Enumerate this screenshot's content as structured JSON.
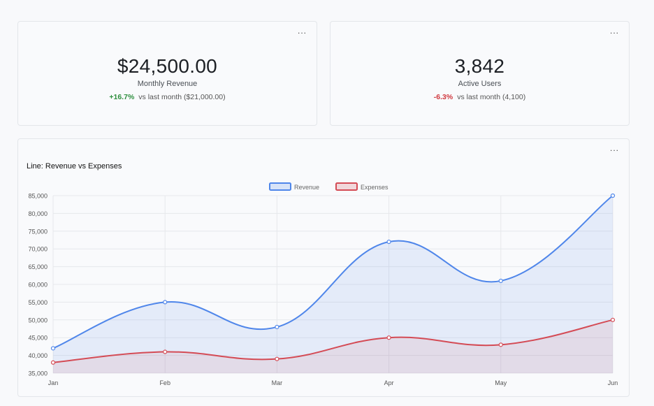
{
  "cards": [
    {
      "menu_label": "...",
      "value": "$24,500.00",
      "label": "Monthly Revenue",
      "change": "+16.7%",
      "change_text": "vs last month ($21,000.00)",
      "trend": "up"
    },
    {
      "menu_label": "...",
      "value": "3,842",
      "label": "Active Users",
      "change": "-6.3%",
      "change_text": "vs last month (4,100)",
      "trend": "down"
    }
  ],
  "chart_card": {
    "menu_label": "...",
    "title": "Line: Revenue vs Expenses"
  },
  "chart_data": {
    "type": "line",
    "categories": [
      "Jan",
      "Feb",
      "Mar",
      "Apr",
      "May",
      "Jun"
    ],
    "series": [
      {
        "name": "Revenue",
        "values": [
          42000,
          55000,
          48000,
          72000,
          61000,
          85000
        ],
        "color": "#4f86ea",
        "fill": "rgba(79,134,234,0.12)"
      },
      {
        "name": "Expenses",
        "values": [
          38000,
          41000,
          39000,
          45000,
          43000,
          50000
        ],
        "color": "#d44b55",
        "fill": "rgba(212,75,85,0.10)"
      }
    ],
    "ylim": [
      35000,
      85000
    ],
    "yticks": [
      "35,000",
      "40,000",
      "45,000",
      "50,000",
      "55,000",
      "60,000",
      "65,000",
      "70,000",
      "75,000",
      "80,000",
      "85,000"
    ],
    "grid": true,
    "legend": "top-center",
    "title": "",
    "xlabel": "",
    "ylabel": ""
  }
}
